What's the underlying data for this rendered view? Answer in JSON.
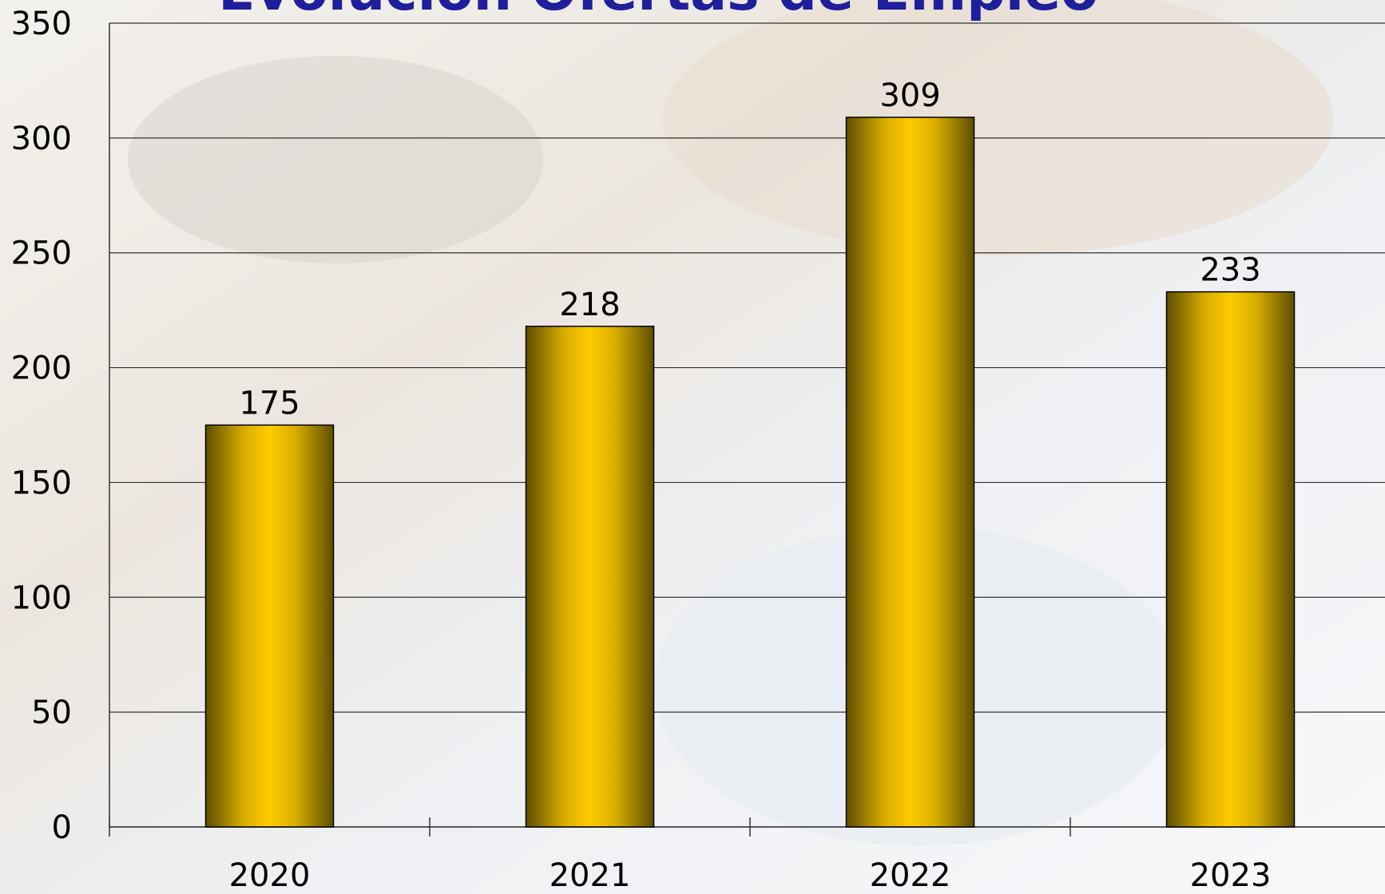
{
  "chart_data": {
    "type": "bar",
    "title": "Evolución Ofertas de Empleo",
    "categories": [
      "2020",
      "2021",
      "2022",
      "2023"
    ],
    "values": [
      175,
      218,
      309,
      233
    ],
    "color": "#ffcc00",
    "ylim": [
      0,
      350
    ],
    "yticks": [
      0,
      50,
      100,
      150,
      200,
      250,
      300,
      350
    ],
    "grid": true
  }
}
